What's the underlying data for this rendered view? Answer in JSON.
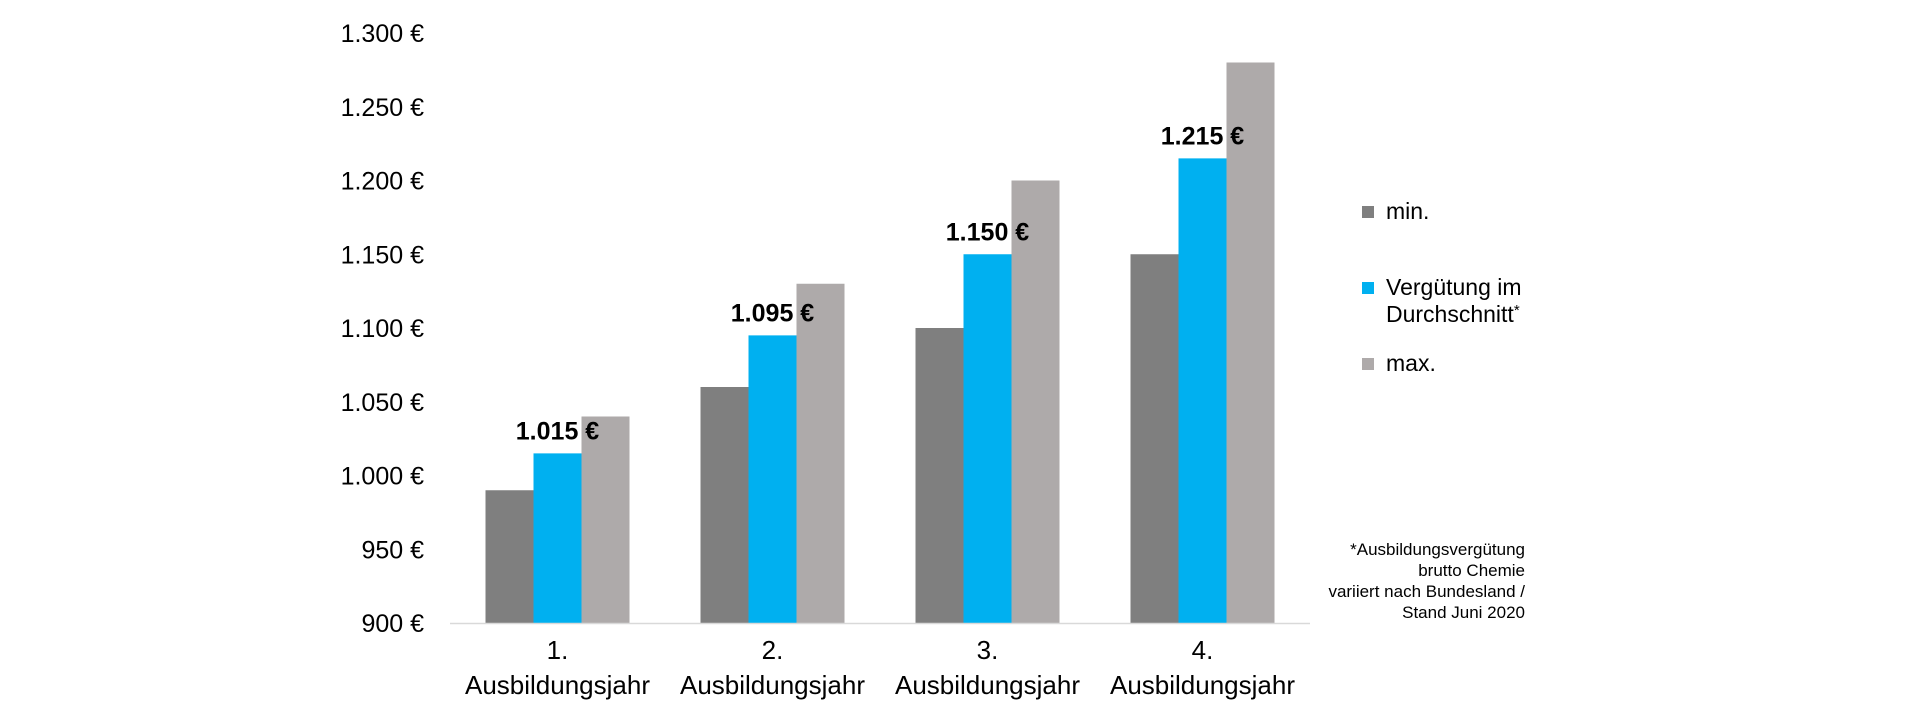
{
  "colors": {
    "min": "#7f7f7f",
    "avg": "#00b0f0",
    "max": "#aeaaaa",
    "axis": "#d9d9d9"
  },
  "legend": {
    "min": "min.",
    "avg": "Vergütung im Durchschnitt",
    "avg_marker": "*",
    "max": "max."
  },
  "footnote": [
    "*Ausbildungsvergütung",
    "brutto Chemie",
    "variiert nach Bundesland /",
    "Stand Juni 2020"
  ],
  "chart_data": {
    "type": "bar",
    "categories": [
      [
        "1.",
        "Ausbildungsjahr"
      ],
      [
        "2.",
        "Ausbildungsjahr"
      ],
      [
        "3.",
        "Ausbildungsjahr"
      ],
      [
        "4.",
        "Ausbildungsjahr"
      ]
    ],
    "series": [
      {
        "key": "min",
        "name": "min.",
        "values": [
          990,
          1060,
          1100,
          1150
        ]
      },
      {
        "key": "avg",
        "name": "Vergütung im Durchschnitt*",
        "values": [
          1015,
          1095,
          1150,
          1215
        ],
        "data_labels": [
          "1.015 €",
          "1.095 €",
          "1.150 €",
          "1.215 €"
        ]
      },
      {
        "key": "max",
        "name": "max.",
        "values": [
          1040,
          1130,
          1200,
          1280
        ]
      }
    ],
    "ylim": [
      900,
      1300
    ],
    "yticks": [
      900,
      950,
      1000,
      1050,
      1100,
      1150,
      1200,
      1250,
      1300
    ],
    "ytick_labels": [
      "900 €",
      "950 €",
      "1.000 €",
      "1.050 €",
      "1.100 €",
      "1.150 €",
      "1.200 €",
      "1.250 €",
      "1.300 €"
    ],
    "grid": false,
    "legend_position": "right"
  }
}
